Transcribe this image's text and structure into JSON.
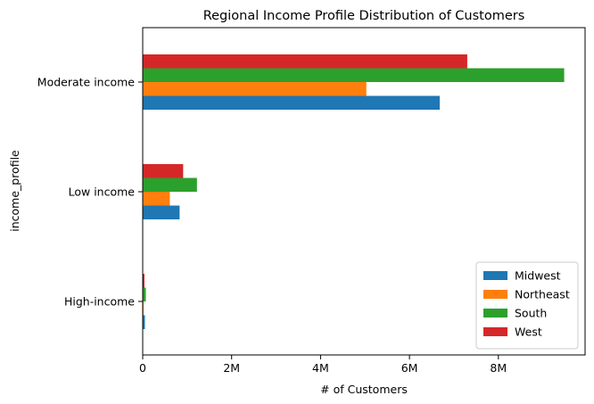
{
  "chart_data": {
    "type": "bar",
    "orientation": "horizontal",
    "title": "Regional Income Profile Distribution of Customers",
    "xlabel": "# of Customers",
    "ylabel": "income_profile",
    "categories": [
      "High-income",
      "Low income",
      "Moderate income"
    ],
    "series": [
      {
        "name": "Midwest",
        "color": "#1f77b4",
        "values": [
          50000,
          830000,
          6680000
        ]
      },
      {
        "name": "Northeast",
        "color": "#ff7f0e",
        "values": [
          20000,
          610000,
          5030000
        ]
      },
      {
        "name": "South",
        "color": "#2ca02c",
        "values": [
          70000,
          1220000,
          9480000
        ]
      },
      {
        "name": "West",
        "color": "#d62728",
        "values": [
          40000,
          910000,
          7300000
        ]
      }
    ],
    "xlim": [
      0,
      9950000
    ],
    "xticks": [
      {
        "value": 0,
        "label": "0"
      },
      {
        "value": 2000000,
        "label": "2M"
      },
      {
        "value": 4000000,
        "label": "4M"
      },
      {
        "value": 6000000,
        "label": "6M"
      },
      {
        "value": 8000000,
        "label": "8M"
      }
    ],
    "grid": false,
    "legend_position": "lower-right"
  }
}
